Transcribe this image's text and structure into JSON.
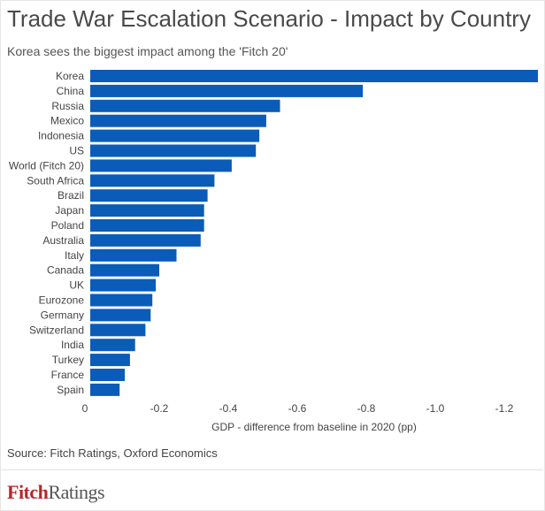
{
  "header": {
    "title": "Trade War Escalation Scenario - Impact by Country",
    "subtitle": "Korea sees the biggest impact among the 'Fitch 20'"
  },
  "footer": {
    "source": "Source: Fitch Ratings, Oxford Economics",
    "logo_part1": "Fitch",
    "logo_part2": "Ratings"
  },
  "colors": {
    "bar": "#0a5cb8",
    "axis_text": "#444444"
  },
  "chart_data": {
    "type": "bar",
    "orientation": "horizontal",
    "title": "Trade War Escalation Scenario - Impact by Country",
    "subtitle": "Korea sees the biggest impact among the 'Fitch 20'",
    "xlabel": "GDP - difference from baseline in 2020 (pp)",
    "ylabel": "",
    "xlim": [
      0,
      -1.3
    ],
    "xticks": [
      0,
      -0.2,
      -0.4,
      -0.6,
      -0.8,
      -1.0,
      -1.2
    ],
    "xtick_labels": [
      "0",
      "-0.2",
      "-0.4",
      "-0.6",
      "-0.8",
      "-1.0",
      "-1.2"
    ],
    "grid": false,
    "categories": [
      "Korea",
      "China",
      "Russia",
      "Mexico",
      "Indonesia",
      "US",
      "World (Fitch 20)",
      "South Africa",
      "Brazil",
      "Japan",
      "Poland",
      "Australia",
      "Italy",
      "Canada",
      "UK",
      "Eurozone",
      "Germany",
      "Switzerland",
      "India",
      "Turkey",
      "France",
      "Spain"
    ],
    "values": [
      -1.31,
      -0.79,
      -0.55,
      -0.51,
      -0.49,
      -0.48,
      -0.41,
      -0.36,
      -0.34,
      -0.33,
      -0.33,
      -0.32,
      -0.25,
      -0.2,
      -0.19,
      -0.18,
      -0.175,
      -0.16,
      -0.13,
      -0.115,
      -0.1,
      -0.085
    ]
  }
}
